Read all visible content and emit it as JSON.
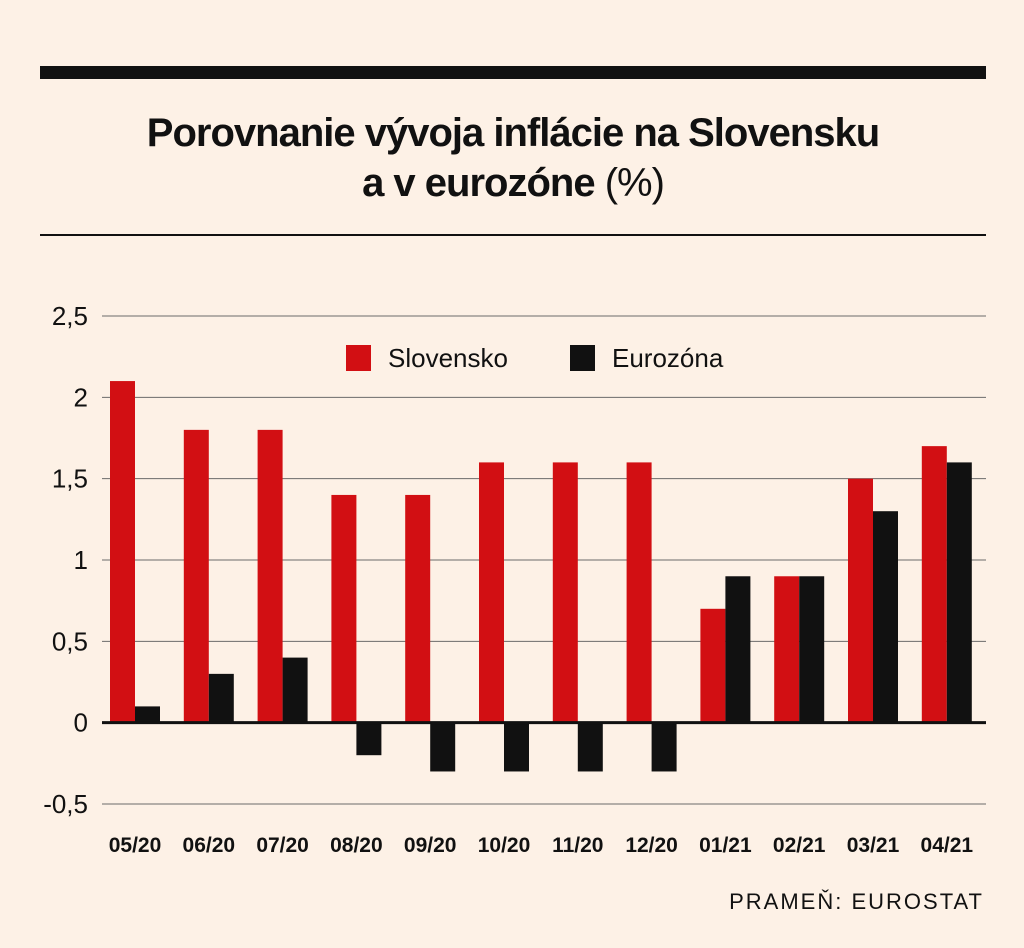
{
  "title": {
    "line1": "Porovnanie vývoja inflácie na Slovensku",
    "line2": "a v eurozóne",
    "unit": "(%)"
  },
  "source": "PRAMEŇ: EUROSTAT",
  "colors": {
    "background": "#fdf1e6",
    "slovensko": "#d20f13",
    "eurozona": "#111111",
    "grid": "#555555"
  },
  "chart_data": {
    "type": "bar",
    "categories": [
      "05/20",
      "06/20",
      "07/20",
      "08/20",
      "09/20",
      "10/20",
      "11/20",
      "12/20",
      "01/21",
      "02/21",
      "03/21",
      "04/21"
    ],
    "series": [
      {
        "name": "Slovensko",
        "color": "#d20f13",
        "values": [
          2.1,
          1.8,
          1.8,
          1.4,
          1.4,
          1.6,
          1.6,
          1.6,
          0.7,
          0.9,
          1.5,
          1.7
        ]
      },
      {
        "name": "Eurozóna",
        "color": "#111111",
        "values": [
          0.1,
          0.3,
          0.4,
          -0.2,
          -0.3,
          -0.3,
          -0.3,
          -0.3,
          0.9,
          0.9,
          1.3,
          1.6
        ]
      }
    ],
    "yticks": [
      2.5,
      2,
      1.5,
      1,
      0.5,
      0,
      -0.5
    ],
    "ytick_labels": [
      "2,5",
      "2",
      "1,5",
      "1",
      "0,5",
      "0",
      "-0,5"
    ],
    "ylim": [
      -0.5,
      2.5
    ],
    "grid": true,
    "legend_position": "top-center"
  }
}
